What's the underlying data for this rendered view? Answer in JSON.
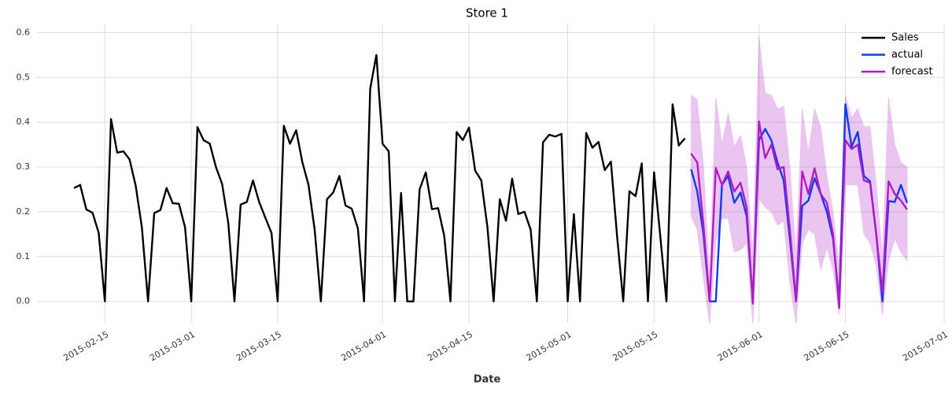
{
  "chart_data": {
    "type": "line",
    "title": "Store 1",
    "xlabel": "Date",
    "xlim": [
      "2015-02-04",
      "2015-07-01"
    ],
    "ylim": [
      -0.048,
      0.62
    ],
    "xticks": [
      "2015-02-15",
      "2015-03-01",
      "2015-03-15",
      "2015-04-01",
      "2015-04-15",
      "2015-05-01",
      "2015-05-15",
      "2015-06-01",
      "2015-06-15",
      "2015-07-01"
    ],
    "yticks": [
      {
        "value": 0,
        "label": "0.0"
      },
      0.1,
      0.2,
      0.3,
      0.4,
      0.5,
      0.6
    ],
    "grid": true,
    "legend": "upper right",
    "series": [
      {
        "name": "Sales",
        "color": "#000000",
        "x": [
          "2015-02-10",
          "2015-02-11",
          "2015-02-12",
          "2015-02-13",
          "2015-02-14",
          "2015-02-15",
          "2015-02-16",
          "2015-02-17",
          "2015-02-18",
          "2015-02-19",
          "2015-02-20",
          "2015-02-21",
          "2015-02-22",
          "2015-02-23",
          "2015-02-24",
          "2015-02-25",
          "2015-02-26",
          "2015-02-27",
          "2015-02-28",
          "2015-03-01",
          "2015-03-02",
          "2015-03-03",
          "2015-03-04",
          "2015-03-05",
          "2015-03-06",
          "2015-03-07",
          "2015-03-08",
          "2015-03-09",
          "2015-03-10",
          "2015-03-11",
          "2015-03-12",
          "2015-03-13",
          "2015-03-14",
          "2015-03-15",
          "2015-03-16",
          "2015-03-17",
          "2015-03-18",
          "2015-03-19",
          "2015-03-20",
          "2015-03-21",
          "2015-03-22",
          "2015-03-23",
          "2015-03-24",
          "2015-03-25",
          "2015-03-26",
          "2015-03-27",
          "2015-03-28",
          "2015-03-29",
          "2015-03-30",
          "2015-03-31",
          "2015-04-01",
          "2015-04-02",
          "2015-04-03",
          "2015-04-04",
          "2015-04-05",
          "2015-04-06",
          "2015-04-07",
          "2015-04-08",
          "2015-04-09",
          "2015-04-10",
          "2015-04-11",
          "2015-04-12",
          "2015-04-13",
          "2015-04-14",
          "2015-04-15",
          "2015-04-16",
          "2015-04-17",
          "2015-04-18",
          "2015-04-19",
          "2015-04-20",
          "2015-04-21",
          "2015-04-22",
          "2015-04-23",
          "2015-04-24",
          "2015-04-25",
          "2015-04-26",
          "2015-04-27",
          "2015-04-28",
          "2015-04-29",
          "2015-04-30",
          "2015-05-01",
          "2015-05-02",
          "2015-05-03",
          "2015-05-04",
          "2015-05-05",
          "2015-05-06",
          "2015-05-07",
          "2015-05-08",
          "2015-05-09",
          "2015-05-10",
          "2015-05-11",
          "2015-05-12",
          "2015-05-13",
          "2015-05-14",
          "2015-05-15",
          "2015-05-16",
          "2015-05-17",
          "2015-05-18",
          "2015-05-19",
          "2015-05-20"
        ],
        "values": [
          0.253,
          0.26,
          0.205,
          0.198,
          0.153,
          0,
          0.407,
          0.332,
          0.335,
          0.317,
          0.258,
          0.165,
          0,
          0.197,
          0.204,
          0.253,
          0.219,
          0.218,
          0.165,
          0,
          0.389,
          0.36,
          0.352,
          0.3,
          0.262,
          0.175,
          0,
          0.216,
          0.222,
          0.27,
          0.222,
          0.187,
          0.153,
          0,
          0.392,
          0.352,
          0.382,
          0.311,
          0.26,
          0.16,
          0,
          0.228,
          0.243,
          0.28,
          0.214,
          0.207,
          0.163,
          0,
          0.475,
          0.55,
          0.352,
          0.335,
          0,
          0.242,
          0,
          0,
          0.25,
          0.288,
          0.206,
          0.208,
          0.146,
          0,
          0.378,
          0.36,
          0.388,
          0.292,
          0.27,
          0.165,
          0,
          0.228,
          0.18,
          0.274,
          0.195,
          0.2,
          0.16,
          0,
          0.355,
          0.372,
          0.368,
          0.374,
          0,
          0.195,
          0,
          0.376,
          0.343,
          0.356,
          0.293,
          0.312,
          0.146,
          0,
          0.246,
          0.235,
          0.308,
          0,
          0.288,
          0.146,
          0,
          0.44,
          0.348,
          0.364
        ]
      },
      {
        "name": "actual",
        "color": "#0b3cf2",
        "x": [
          "2015-05-21",
          "2015-05-22",
          "2015-05-23",
          "2015-05-24",
          "2015-05-25",
          "2015-05-26",
          "2015-05-27",
          "2015-05-28",
          "2015-05-29",
          "2015-05-30",
          "2015-05-31",
          "2015-06-01",
          "2015-06-02",
          "2015-06-03",
          "2015-06-04",
          "2015-06-05",
          "2015-06-06",
          "2015-06-07",
          "2015-06-08",
          "2015-06-09",
          "2015-06-10",
          "2015-06-11",
          "2015-06-12",
          "2015-06-13",
          "2015-06-14",
          "2015-06-15",
          "2015-06-16",
          "2015-06-17",
          "2015-06-18",
          "2015-06-19",
          "2015-06-20",
          "2015-06-21",
          "2015-06-22",
          "2015-06-23",
          "2015-06-24",
          "2015-06-25"
        ],
        "values": [
          0.295,
          0.245,
          0.15,
          0,
          0,
          0.26,
          0.28,
          0.22,
          0.243,
          0.19,
          0,
          0.36,
          0.385,
          0.36,
          0.31,
          0.27,
          0.14,
          0,
          0.213,
          0.225,
          0.275,
          0.24,
          0.2,
          0.14,
          0,
          0.44,
          0.345,
          0.378,
          0.28,
          0.268,
          0.15,
          0,
          0.224,
          0.222,
          0.26,
          0.22
        ]
      },
      {
        "name": "forecast",
        "color": "#b01cc2",
        "x": [
          "2015-05-21",
          "2015-05-22",
          "2015-05-23",
          "2015-05-24",
          "2015-05-25",
          "2015-05-26",
          "2015-05-27",
          "2015-05-28",
          "2015-05-29",
          "2015-05-30",
          "2015-05-31",
          "2015-06-01",
          "2015-06-02",
          "2015-06-03",
          "2015-06-04",
          "2015-06-05",
          "2015-06-06",
          "2015-06-07",
          "2015-06-08",
          "2015-06-09",
          "2015-06-10",
          "2015-06-11",
          "2015-06-12",
          "2015-06-13",
          "2015-06-14",
          "2015-06-15",
          "2015-06-16",
          "2015-06-17",
          "2015-06-18",
          "2015-06-19",
          "2015-06-20",
          "2015-06-21",
          "2015-06-22",
          "2015-06-23",
          "2015-06-24",
          "2015-06-25"
        ],
        "values": [
          0.33,
          0.31,
          0.17,
          0,
          0.298,
          0.26,
          0.29,
          0.245,
          0.265,
          0.21,
          -0.005,
          0.402,
          0.32,
          0.35,
          0.295,
          0.3,
          0.16,
          0,
          0.29,
          0.24,
          0.297,
          0.24,
          0.22,
          0.15,
          -0.015,
          0.36,
          0.34,
          0.35,
          0.27,
          0.265,
          0.15,
          0.02,
          0.268,
          0.24,
          0.225,
          0.205
        ],
        "upper": [
          0.46,
          0.45,
          0.3,
          0.05,
          0.455,
          0.35,
          0.42,
          0.345,
          0.37,
          0.3,
          0.1,
          0.59,
          0.465,
          0.46,
          0.43,
          0.435,
          0.3,
          0.1,
          0.43,
          0.33,
          0.43,
          0.39,
          0.28,
          0.2,
          0.08,
          0.46,
          0.41,
          0.43,
          0.39,
          0.39,
          0.26,
          0.1,
          0.455,
          0.35,
          0.31,
          0.3
        ],
        "lower": [
          0.19,
          0.16,
          0.05,
          -0.05,
          0.13,
          0.185,
          0.185,
          0.11,
          0.115,
          0.13,
          -0.05,
          0.23,
          0.21,
          0.2,
          0.17,
          0.18,
          0.04,
          -0.05,
          0.13,
          0.16,
          0.15,
          0.07,
          0.12,
          0.07,
          -0.03,
          0.26,
          0.26,
          0.26,
          0.15,
          0.13,
          0.08,
          -0.03,
          0.09,
          0.14,
          0.11,
          0.09
        ]
      }
    ]
  }
}
